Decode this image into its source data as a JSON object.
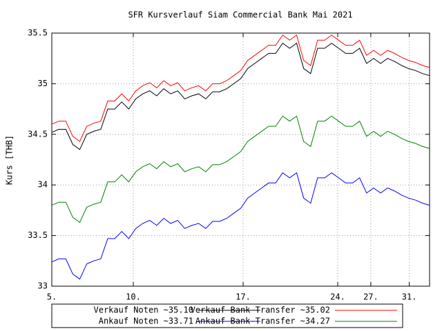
{
  "chart_data": {
    "type": "line",
    "title": "SFR Kursverlauf Siam Commercial Bank Mai 2021",
    "y_label": "Kurs [THB]",
    "x": [
      0,
      1,
      2,
      3,
      4,
      5,
      6,
      7,
      8,
      9,
      10,
      11,
      12,
      13,
      14,
      15,
      16,
      17,
      18,
      19,
      20,
      21,
      22,
      23,
      24,
      25,
      26,
      27,
      28,
      29,
      30,
      31,
      32,
      33,
      34,
      35,
      36,
      37,
      38,
      39,
      40,
      41,
      42,
      43,
      44,
      45,
      46,
      47,
      48,
      49,
      50,
      51,
      52,
      53,
      54
    ],
    "xlim": [
      0,
      54
    ],
    "xticks": [
      {
        "value": 0,
        "label": "5."
      },
      {
        "value": 11.65,
        "label": "10."
      },
      {
        "value": 27.35,
        "label": "17."
      },
      {
        "value": 40.87,
        "label": "24."
      },
      {
        "value": 45.6,
        "label": "27."
      },
      {
        "value": 51.1,
        "label": "31."
      }
    ],
    "ylim": [
      33,
      35.5
    ],
    "yticks": [
      33,
      33.5,
      34,
      34.5,
      35,
      35.5
    ],
    "grid": true,
    "series": [
      {
        "name": "Verkauf Noten ~35.10",
        "color": "#000000",
        "values": [
          34.52,
          34.55,
          34.55,
          34.4,
          34.35,
          34.5,
          34.53,
          34.55,
          34.75,
          34.75,
          34.82,
          34.75,
          34.85,
          34.9,
          34.93,
          34.88,
          34.95,
          34.9,
          34.93,
          34.85,
          34.88,
          34.9,
          34.85,
          34.92,
          34.92,
          34.95,
          35.0,
          35.05,
          35.15,
          35.2,
          35.25,
          35.3,
          35.3,
          35.4,
          35.35,
          35.4,
          35.15,
          35.1,
          35.35,
          35.35,
          35.4,
          35.35,
          35.3,
          35.3,
          35.35,
          35.2,
          35.25,
          35.2,
          35.25,
          35.22,
          35.18,
          35.15,
          35.13,
          35.1,
          35.08
        ]
      },
      {
        "name": "Verkauf Bank-Transfer ~35.02",
        "color": "#ff0000",
        "values": [
          34.6,
          34.63,
          34.63,
          34.48,
          34.43,
          34.58,
          34.61,
          34.63,
          34.83,
          34.83,
          34.9,
          34.83,
          34.93,
          34.98,
          35.01,
          34.96,
          35.03,
          34.98,
          35.01,
          34.93,
          34.96,
          34.98,
          34.93,
          35.0,
          35.0,
          35.03,
          35.08,
          35.13,
          35.23,
          35.28,
          35.33,
          35.38,
          35.38,
          35.48,
          35.43,
          35.48,
          35.23,
          35.18,
          35.43,
          35.43,
          35.48,
          35.43,
          35.38,
          35.38,
          35.43,
          35.28,
          35.33,
          35.28,
          35.33,
          35.3,
          35.26,
          35.23,
          35.21,
          35.18,
          35.16
        ]
      },
      {
        "name": "Ankauf Noten ~33.71",
        "color": "#0000ff",
        "values": [
          33.24,
          33.27,
          33.27,
          33.12,
          33.07,
          33.22,
          33.25,
          33.27,
          33.47,
          33.47,
          33.54,
          33.47,
          33.57,
          33.62,
          33.65,
          33.6,
          33.67,
          33.62,
          33.65,
          33.57,
          33.6,
          33.62,
          33.57,
          33.64,
          33.64,
          33.67,
          33.72,
          33.77,
          33.87,
          33.92,
          33.97,
          34.02,
          34.02,
          34.12,
          34.07,
          34.12,
          33.87,
          33.82,
          34.07,
          34.07,
          34.12,
          34.07,
          34.02,
          34.02,
          34.07,
          33.92,
          33.97,
          33.92,
          33.97,
          33.94,
          33.9,
          33.87,
          33.85,
          33.82,
          33.8
        ]
      },
      {
        "name": "Ankauf Bank-Transfer ~34.27",
        "color": "#008000",
        "values": [
          33.8,
          33.83,
          33.83,
          33.68,
          33.63,
          33.78,
          33.81,
          33.83,
          34.03,
          34.03,
          34.1,
          34.03,
          34.13,
          34.18,
          34.21,
          34.16,
          34.23,
          34.18,
          34.21,
          34.13,
          34.16,
          34.18,
          34.13,
          34.2,
          34.2,
          34.23,
          34.28,
          34.33,
          34.43,
          34.48,
          34.53,
          34.58,
          34.58,
          34.68,
          34.63,
          34.68,
          34.43,
          34.38,
          34.63,
          34.63,
          34.68,
          34.63,
          34.58,
          34.58,
          34.63,
          34.48,
          34.53,
          34.48,
          34.53,
          34.5,
          34.46,
          34.43,
          34.41,
          34.38,
          34.36
        ]
      }
    ]
  }
}
